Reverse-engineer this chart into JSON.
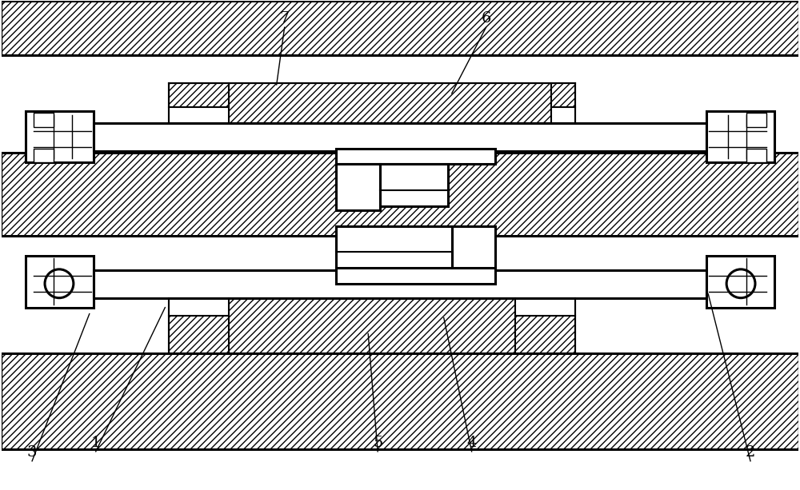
{
  "bg_color": "#ffffff",
  "line_color": "#000000",
  "fig_width": 10.0,
  "fig_height": 6.13,
  "lw_thick": 2.2,
  "lw_med": 1.5,
  "lw_thin": 1.0
}
